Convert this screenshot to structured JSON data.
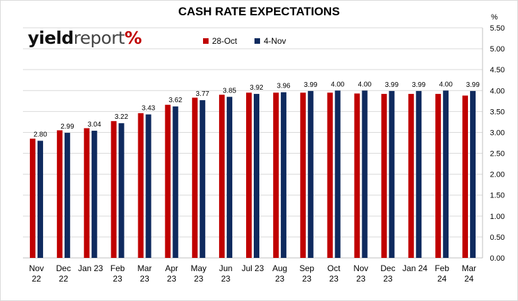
{
  "chart_data": {
    "type": "bar",
    "title": "CASH RATE EXPECTATIONS",
    "y_unit": "%",
    "ylim": [
      0,
      5.5
    ],
    "y_ticks": [
      "0.00",
      "0.50",
      "1.00",
      "1.50",
      "2.00",
      "2.50",
      "3.00",
      "3.50",
      "4.00",
      "4.50",
      "5.00",
      "5.50"
    ],
    "grid": "horizontal",
    "legend_position": "top",
    "categories": [
      [
        "Nov",
        "22"
      ],
      [
        "Dec",
        "22"
      ],
      [
        "Jan 23"
      ],
      [
        "Feb",
        "23"
      ],
      [
        "Mar",
        "23"
      ],
      [
        "Apr",
        "23"
      ],
      [
        "May",
        "23"
      ],
      [
        "Jun",
        "23"
      ],
      [
        "Jul 23"
      ],
      [
        "Aug",
        "23"
      ],
      [
        "Sep",
        "23"
      ],
      [
        "Oct",
        "23"
      ],
      [
        "Nov",
        "23"
      ],
      [
        "Dec",
        "23"
      ],
      [
        "Jan 24"
      ],
      [
        "Feb",
        "24"
      ],
      [
        "Mar",
        "24"
      ]
    ],
    "series": [
      {
        "name": "28-Oct",
        "color": "#c00000",
        "values": [
          2.85,
          3.05,
          3.1,
          3.27,
          3.46,
          3.66,
          3.83,
          3.9,
          3.95,
          3.95,
          3.95,
          3.95,
          3.93,
          3.92,
          3.92,
          3.92,
          3.88
        ]
      },
      {
        "name": "4-Nov",
        "color": "#0f2a5e",
        "values": [
          2.8,
          2.99,
          3.04,
          3.22,
          3.43,
          3.62,
          3.77,
          3.85,
          3.92,
          3.96,
          3.99,
          4.0,
          4.0,
          3.99,
          3.99,
          4.0,
          3.99
        ],
        "labels": [
          "2.80",
          "2.99",
          "3.04",
          "3.22",
          "3.43",
          "3.62",
          "3.77",
          "3.85",
          "3.92",
          "3.96",
          "3.99",
          "4.00",
          "4.00",
          "3.99",
          "3.99",
          "4.00",
          "3.99"
        ]
      }
    ]
  },
  "logo": {
    "part1": "yield",
    "part2": "report",
    "part3": "%"
  }
}
